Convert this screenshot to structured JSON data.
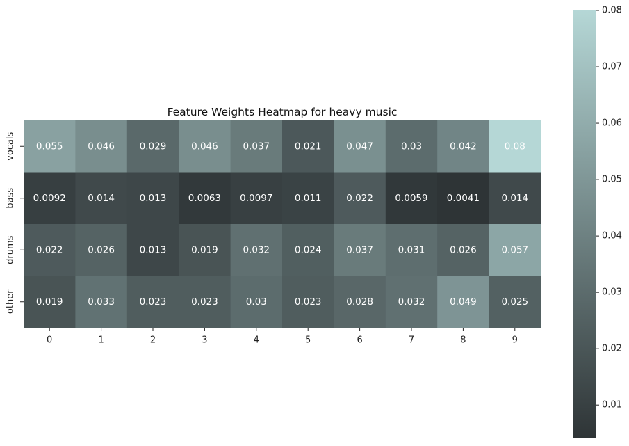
{
  "chart_data": {
    "type": "heatmap",
    "title": "Feature Weights Heatmap for heavy music",
    "xlabel": "",
    "ylabel": "",
    "x_categories": [
      "0",
      "1",
      "2",
      "3",
      "4",
      "5",
      "6",
      "7",
      "8",
      "9"
    ],
    "y_categories": [
      "vocals",
      "bass",
      "drums",
      "other"
    ],
    "values": [
      [
        0.055,
        0.046,
        0.029,
        0.046,
        0.037,
        0.021,
        0.047,
        0.03,
        0.042,
        0.08
      ],
      [
        0.0092,
        0.014,
        0.013,
        0.0063,
        0.0097,
        0.011,
        0.022,
        0.0059,
        0.0041,
        0.014
      ],
      [
        0.022,
        0.026,
        0.013,
        0.019,
        0.032,
        0.024,
        0.037,
        0.031,
        0.026,
        0.057
      ],
      [
        0.019,
        0.033,
        0.023,
        0.023,
        0.03,
        0.023,
        0.028,
        0.032,
        0.049,
        0.025
      ]
    ],
    "labels": [
      [
        "0.055",
        "0.046",
        "0.029",
        "0.046",
        "0.037",
        "0.021",
        "0.047",
        "0.03",
        "0.042",
        "0.08"
      ],
      [
        "0.0092",
        "0.014",
        "0.013",
        "0.0063",
        "0.0097",
        "0.011",
        "0.022",
        "0.0059",
        "0.0041",
        "0.014"
      ],
      [
        "0.022",
        "0.026",
        "0.013",
        "0.019",
        "0.032",
        "0.024",
        "0.037",
        "0.031",
        "0.026",
        "0.057"
      ],
      [
        "0.019",
        "0.033",
        "0.023",
        "0.023",
        "0.03",
        "0.023",
        "0.028",
        "0.032",
        "0.049",
        "0.025"
      ]
    ],
    "colorbar": {
      "min": 0.0041,
      "max": 0.08,
      "ticks": [
        0.01,
        0.02,
        0.03,
        0.04,
        0.05,
        0.06,
        0.07,
        0.08
      ],
      "tick_labels": [
        "0.01",
        "0.02",
        "0.03",
        "0.04",
        "0.05",
        "0.06",
        "0.07",
        "0.08"
      ],
      "color_low": "#2e3436",
      "color_high": "#b5d7d6"
    },
    "grid": false,
    "legend": "colorbar-right"
  }
}
